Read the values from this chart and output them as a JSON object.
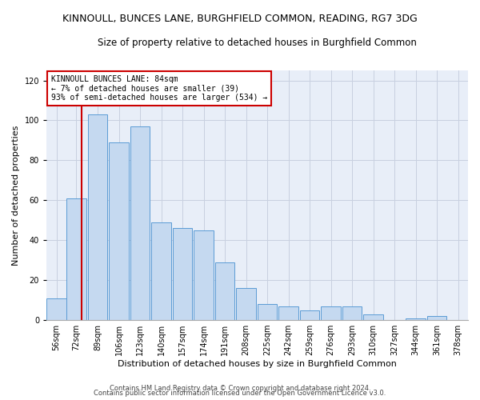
{
  "title": "KINNOULL, BUNCES LANE, BURGHFIELD COMMON, READING, RG7 3DG",
  "subtitle": "Size of property relative to detached houses in Burghfield Common",
  "xlabel": "Distribution of detached houses by size in Burghfield Common",
  "ylabel": "Number of detached properties",
  "annotation_line1": "KINNOULL BUNCES LANE: 84sqm",
  "annotation_line2": "← 7% of detached houses are smaller (39)",
  "annotation_line3": "93% of semi-detached houses are larger (534) →",
  "footer1": "Contains HM Land Registry data © Crown copyright and database right 2024.",
  "footer2": "Contains public sector information licensed under the Open Government Licence v3.0.",
  "bin_edges": [
    56,
    72,
    89,
    106,
    123,
    140,
    157,
    174,
    191,
    208,
    225,
    242,
    259,
    276,
    293,
    310,
    327,
    344,
    361,
    378
  ],
  "bar_values": [
    11,
    61,
    103,
    89,
    97,
    49,
    46,
    45,
    29,
    16,
    8,
    7,
    5,
    7,
    7,
    3,
    0,
    1,
    2
  ],
  "bar_color": "#c5d9f0",
  "bar_edge_color": "#5b9bd5",
  "vline_x": 84,
  "vline_color": "#cc0000",
  "annotation_box_edge": "#cc0000",
  "ylim": [
    0,
    125
  ],
  "yticks": [
    0,
    20,
    40,
    60,
    80,
    100,
    120
  ],
  "ax_facecolor": "#e8eef8",
  "background_color": "#ffffff",
  "grid_color": "#c8d0e0",
  "title_fontsize": 9,
  "subtitle_fontsize": 8.5,
  "axis_label_fontsize": 8,
  "tick_fontsize": 7,
  "footer_fontsize": 6
}
